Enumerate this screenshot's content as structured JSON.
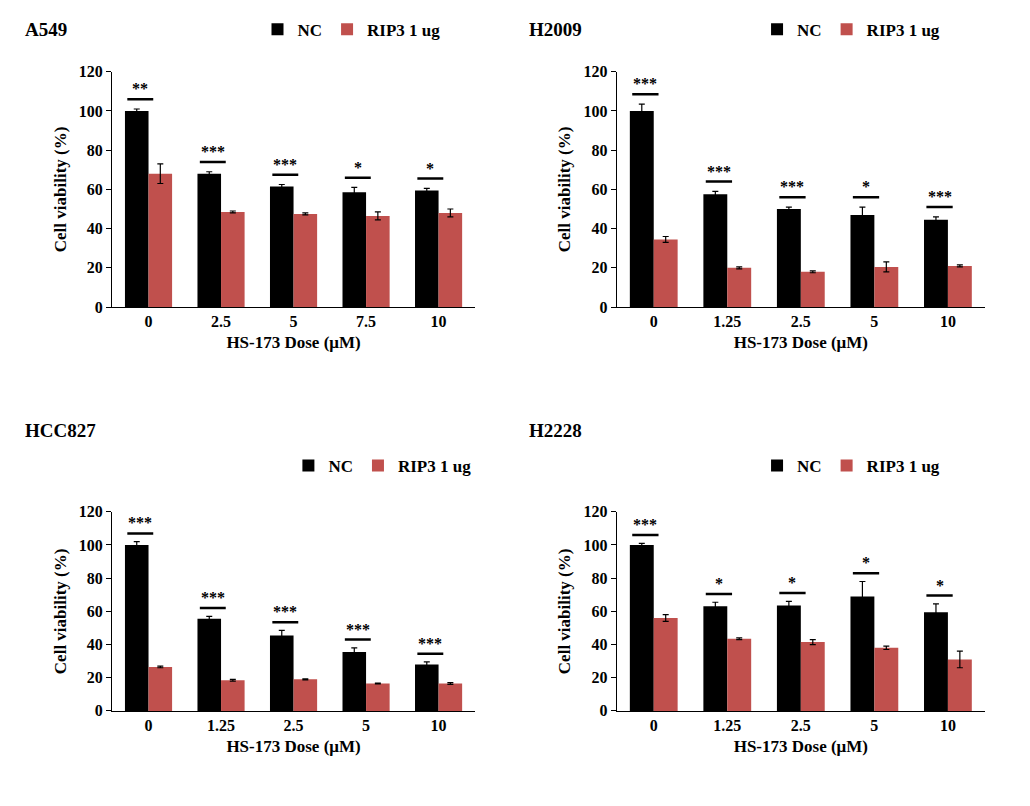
{
  "chart_data": [
    {
      "type": "bar",
      "title": "A549",
      "x_label": "HS-173 Dose (μM)",
      "y_label": "Cell viability (%)",
      "categories": [
        "0",
        "2.5",
        "5",
        "7.5",
        "10"
      ],
      "series": [
        {
          "name": "NC",
          "color": "#000000",
          "values": [
            100,
            68,
            61.5,
            58.5,
            59.5
          ],
          "errors": [
            1,
            1,
            1,
            2.5,
            1
          ]
        },
        {
          "name": "RIP3 1 ug",
          "color": "#c0504d",
          "values": [
            68,
            48.5,
            47.5,
            46.5,
            48
          ],
          "errors": [
            5,
            0.5,
            0.5,
            2,
            2
          ]
        }
      ],
      "annotations": [
        "**",
        "***",
        "***",
        "*",
        "*"
      ],
      "ylim": [
        0,
        120
      ],
      "yticks": [
        0,
        20,
        40,
        60,
        80,
        100,
        120
      ],
      "grid": false,
      "legend": "top"
    },
    {
      "type": "bar",
      "title": "H2009",
      "x_label": "HS-173 Dose (μM)",
      "y_label": "Cell viability (%)",
      "categories": [
        "0",
        "1.25",
        "2.5",
        "5",
        "10"
      ],
      "series": [
        {
          "name": "NC",
          "color": "#000000",
          "values": [
            100,
            57.5,
            50,
            47,
            44.5
          ],
          "errors": [
            3.5,
            1.5,
            1,
            4,
            1.5
          ]
        },
        {
          "name": "RIP3 1 ug",
          "color": "#c0504d",
          "values": [
            34.5,
            20,
            18,
            20.5,
            21
          ],
          "errors": [
            1.5,
            0.5,
            0.5,
            2.5,
            0.5
          ]
        }
      ],
      "annotations": [
        "***",
        "***",
        "***",
        "*",
        "***"
      ],
      "ylim": [
        0,
        120
      ],
      "yticks": [
        0,
        20,
        40,
        60,
        80,
        100,
        120
      ],
      "grid": false,
      "legend": "top"
    },
    {
      "type": "bar",
      "title": "HCC827",
      "x_label": "HS-173 Dose (μM)",
      "y_label": "Cell viability (%)",
      "categories": [
        "0",
        "1.25",
        "2.5",
        "5",
        "10"
      ],
      "series": [
        {
          "name": "NC",
          "color": "#000000",
          "values": [
            100,
            55.5,
            45.5,
            35.5,
            28
          ],
          "errors": [
            2,
            1.5,
            3,
            2.5,
            1.5
          ]
        },
        {
          "name": "RIP3 1 ug",
          "color": "#c0504d",
          "values": [
            26.5,
            18.5,
            19,
            16.5,
            16.5
          ],
          "errors": [
            0.5,
            0.5,
            0.3,
            0.3,
            0.5
          ]
        }
      ],
      "annotations": [
        "***",
        "***",
        "***",
        "***",
        "***"
      ],
      "ylim": [
        0,
        120
      ],
      "yticks": [
        0,
        20,
        40,
        60,
        80,
        100,
        120
      ],
      "grid": false,
      "legend": "top"
    },
    {
      "type": "bar",
      "title": "H2228",
      "x_label": "HS-173 Dose (μM)",
      "y_label": "Cell viability (%)",
      "categories": [
        "0",
        "1.25",
        "2.5",
        "5",
        "10"
      ],
      "series": [
        {
          "name": "NC",
          "color": "#000000",
          "values": [
            100,
            63,
            63.5,
            69,
            59.5
          ],
          "errors": [
            1,
            2.5,
            2.5,
            9,
            5
          ]
        },
        {
          "name": "RIP3 1 ug",
          "color": "#c0504d",
          "values": [
            56,
            43.5,
            41.5,
            38,
            31
          ],
          "errors": [
            2,
            0.5,
            1.5,
            1,
            5
          ]
        }
      ],
      "annotations": [
        "***",
        "*",
        "*",
        "*",
        "*"
      ],
      "ylim": [
        0,
        120
      ],
      "yticks": [
        0,
        20,
        40,
        60,
        80,
        100,
        120
      ],
      "grid": false,
      "legend": "top"
    }
  ]
}
